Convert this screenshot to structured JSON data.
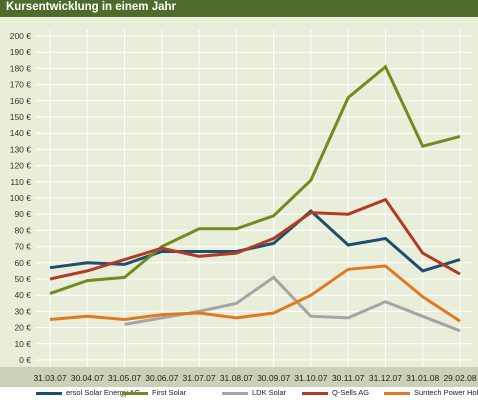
{
  "page_title": "Kursentwicklung in einem Jahr",
  "chart_data": {
    "type": "line",
    "title": "Kursentwicklung in einem Jahr",
    "xlabel": "",
    "ylabel": "",
    "ylim": [
      0,
      200
    ],
    "y_tick_values": [
      0,
      10,
      20,
      30,
      40,
      50,
      60,
      70,
      80,
      90,
      100,
      110,
      120,
      130,
      140,
      150,
      160,
      170,
      180,
      190,
      200
    ],
    "y_tick_labels": [
      "0 €",
      "10 €",
      "20 €",
      "30 €",
      "40 €",
      "50 €",
      "60 €",
      "70 €",
      "80 €",
      "90 €",
      "100 €",
      "110 €",
      "120 €",
      "130 €",
      "140 €",
      "150 €",
      "160 €",
      "170 €",
      "180 €",
      "190 €",
      "200 €"
    ],
    "categories": [
      "31.03.07",
      "30.04.07",
      "31.05.07",
      "30.06.07",
      "31.07.07",
      "31.08.07",
      "30.09.07",
      "31.10.07",
      "30.11.07",
      "31.12.07",
      "31.01.08",
      "29.02.08"
    ],
    "grid": true,
    "legend_position": "bottom",
    "series": [
      {
        "name": "ersol Solar Energy AG",
        "color": "#1d4f6e",
        "values": [
          57,
          60,
          59,
          67,
          67,
          67,
          72,
          92,
          71,
          75,
          55,
          62
        ]
      },
      {
        "name": "First Solar",
        "color": "#6f8d1e",
        "values": [
          41,
          49,
          51,
          70,
          81,
          81,
          89,
          111,
          162,
          181,
          132,
          138
        ]
      },
      {
        "name": "LDK Solar",
        "color": "#a5a5a5",
        "values": [
          null,
          null,
          22,
          26,
          30,
          35,
          51,
          27,
          26,
          36,
          27,
          18
        ]
      },
      {
        "name": "Q-Sells AG",
        "color": "#b23b26",
        "values": [
          50,
          55,
          62,
          69,
          64,
          66,
          75,
          91,
          90,
          99,
          66,
          53
        ]
      },
      {
        "name": "Suntech Power Holdings",
        "color": "#e07a21",
        "values": [
          25,
          27,
          25,
          28,
          29,
          26,
          29,
          40,
          56,
          58,
          39,
          24
        ]
      }
    ]
  }
}
